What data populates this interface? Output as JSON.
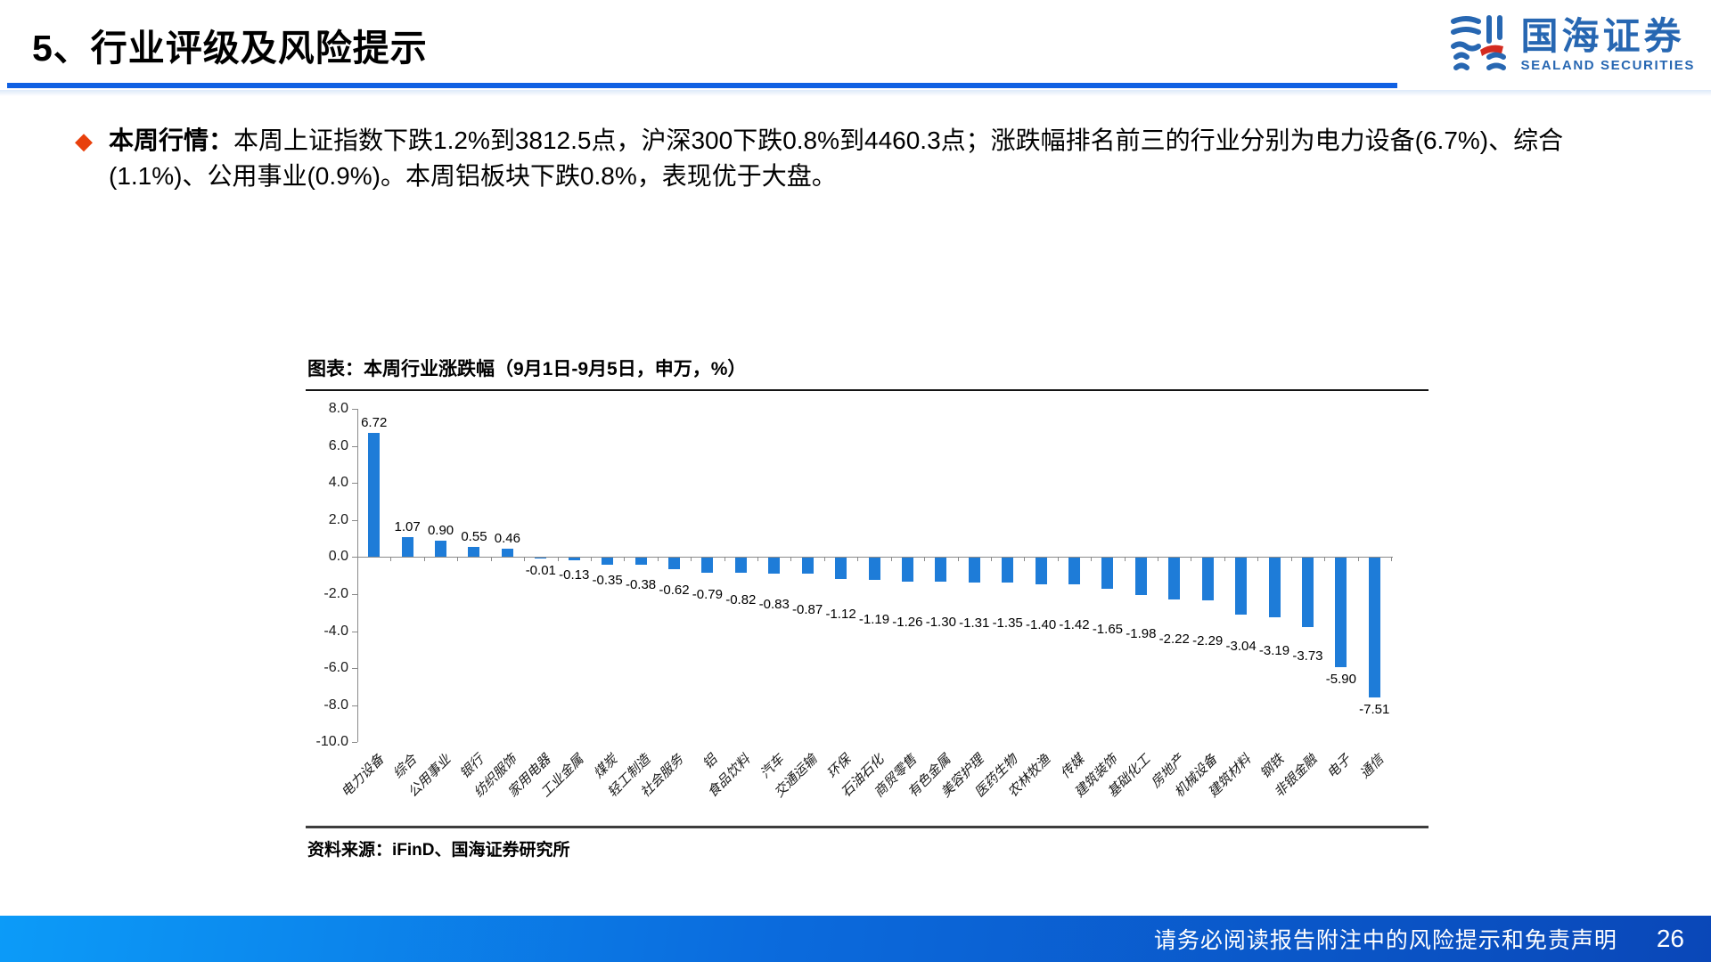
{
  "header": {
    "title": "5、行业评级及风险提示",
    "logo": {
      "name": "国海证券",
      "subtitle": "SEALAND SECURITIES"
    }
  },
  "bullet": {
    "label": "本周行情：",
    "text": "本周上证指数下跌1.2%到3812.5点，沪深300下跌0.8%到4460.3点；涨跌幅排名前三的行业分别为电力设备(6.7%)、综合(1.1%)、公用事业(0.9%)。本周铝板块下跌0.8%，表现优于大盘。"
  },
  "figure": {
    "title": "图表：本周行业涨跌幅（9月1日-9月5日，申万，%）",
    "source": "资料来源：iFinD、国海证券研究所"
  },
  "chart_data": {
    "type": "bar",
    "title": "本周行业涨跌幅（9月1日-9月5日，申万，%）",
    "ylabel": "",
    "xlabel": "",
    "ylim": [
      -10,
      8
    ],
    "ytick_step": 2,
    "grid": false,
    "legend": "none",
    "bar_color": "#1E7CD8",
    "categories": [
      "电力设备",
      "综合",
      "公用事业",
      "银行",
      "纺织服饰",
      "家用电器",
      "工业金属",
      "煤炭",
      "轻工制造",
      "社会服务",
      "铝",
      "食品饮料",
      "汽车",
      "交通运输",
      "环保",
      "石油石化",
      "商贸零售",
      "有色金属",
      "美容护理",
      "医药生物",
      "农林牧渔",
      "传媒",
      "建筑装饰",
      "基础化工",
      "房地产",
      "机械设备",
      "建筑材料",
      "钢铁",
      "非银金融",
      "电子",
      "通信"
    ],
    "values": [
      6.72,
      1.07,
      0.9,
      0.55,
      0.46,
      -0.01,
      -0.13,
      -0.35,
      -0.38,
      -0.62,
      -0.79,
      -0.82,
      -0.83,
      -0.87,
      -1.12,
      -1.19,
      -1.26,
      -1.3,
      -1.31,
      -1.35,
      -1.4,
      -1.42,
      -1.65,
      -1.98,
      -2.22,
      -2.29,
      -3.04,
      -3.19,
      -3.73,
      -5.9,
      -7.51
    ]
  },
  "footer": {
    "disclaimer": "请务必阅读报告附注中的风险提示和免责声明",
    "page": "26"
  },
  "colors": {
    "accent_blue": "#1161E3",
    "bar_blue": "#1E7CD8",
    "bullet_red": "#E8400C",
    "logo_blue": "#2767B2",
    "logo_red": "#D42B20"
  }
}
